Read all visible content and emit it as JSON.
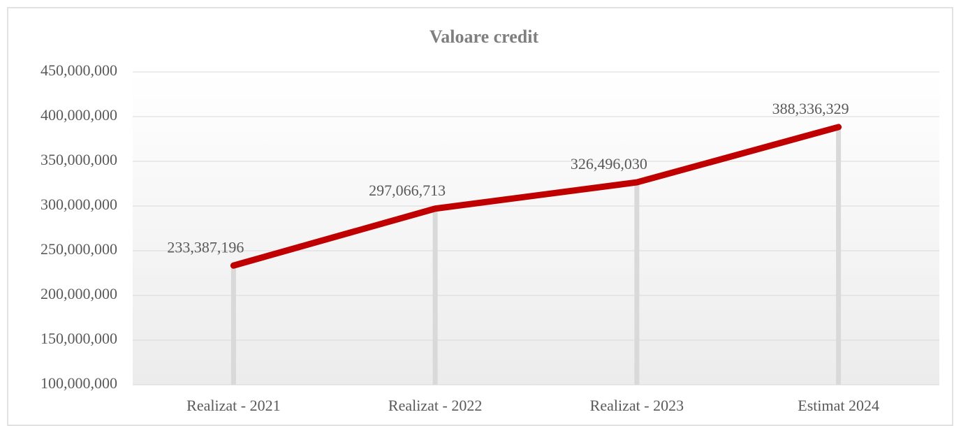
{
  "chart_data": {
    "type": "line",
    "title": "Valoare credit",
    "categories": [
      "Realizat - 2021",
      "Realizat - 2022",
      "Realizat - 2023",
      "Estimat 2024"
    ],
    "values": [
      233387196,
      297066713,
      326496030,
      388336329
    ],
    "value_labels": [
      "233,387,196",
      "297,066,713",
      "326,496,030",
      "388,336,329"
    ],
    "color": "#c00000",
    "drop_lines": true,
    "grid": true,
    "ylim": [
      100000000,
      450000000
    ],
    "yticks": [
      {
        "value": 100000000,
        "label": "100,000,000"
      },
      {
        "value": 150000000,
        "label": "150,000,000"
      },
      {
        "value": 200000000,
        "label": "200,000,000"
      },
      {
        "value": 250000000,
        "label": "250,000,000"
      },
      {
        "value": 300000000,
        "label": "300,000,000"
      },
      {
        "value": 350000000,
        "label": "350,000,000"
      },
      {
        "value": 400000000,
        "label": "400,000,000"
      },
      {
        "value": 450000000,
        "label": "450,000,000"
      }
    ]
  }
}
